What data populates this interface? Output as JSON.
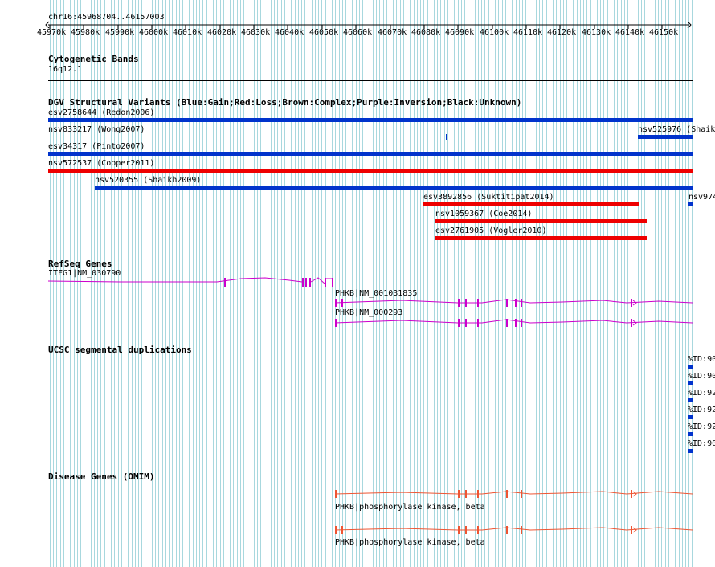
{
  "colors": {
    "grid": "#a8d8de",
    "gain": "#0033cc",
    "loss": "#ee0000",
    "gene": "#cc00cc",
    "omim": "#ee5533",
    "dup": "#0033cc"
  },
  "ruler": {
    "location": "chr16:45968704..46157003",
    "ticks": [
      "45970k",
      "45980k",
      "45990k",
      "46000k",
      "46010k",
      "46020k",
      "46030k",
      "46040k",
      "46050k",
      "46060k",
      "46070k",
      "46080k",
      "46090k",
      "46100k",
      "46110k",
      "46120k",
      "46130k",
      "46140k",
      "46150k"
    ]
  },
  "cytoband": {
    "title": "Cytogenetic Bands",
    "band": "16q12.1"
  },
  "dgv": {
    "title": "DGV Structural Variants (Blue:Gain;Red:Loss;Brown:Complex;Purple:Inversion;Black:Unknown)",
    "variants": [
      {
        "label": "esv2758644 (Redon2006)",
        "type": "gain"
      },
      {
        "label": "nsv833217 (Wong2007)",
        "type": "gain"
      },
      {
        "label": "nsv525976 (Shaik",
        "type": "gain"
      },
      {
        "label": "esv34317 (Pinto2007)",
        "type": "gain"
      },
      {
        "label": "nsv572537 (Cooper2011)",
        "type": "loss"
      },
      {
        "label": "nsv520355 (Shaikh2009)",
        "type": "gain"
      },
      {
        "label": "esv3892856 (Suktitipat2014)",
        "type": "loss"
      },
      {
        "label": "nsv974",
        "type": "gain"
      },
      {
        "label": "nsv1059367 (Coe2014)",
        "type": "loss"
      },
      {
        "label": "esv2761905 (Vogler2010)",
        "type": "loss"
      }
    ]
  },
  "refseq": {
    "title": "RefSeq Genes",
    "genes": [
      {
        "label": "ITFG1|NM_030790"
      },
      {
        "label": "PHKB|NM_001031835"
      },
      {
        "label": "PHKB|NM_000293"
      }
    ]
  },
  "segdups": {
    "title": "UCSC segmental duplications",
    "labels": [
      "%ID:90",
      "%ID:90",
      "%ID:92",
      "%ID:92",
      "%ID:92",
      "%ID:90"
    ]
  },
  "omim": {
    "title": "Disease Genes (OMIM)",
    "genes": [
      {
        "label": "PHKB|phosphorylase kinase, beta"
      },
      {
        "label": "PHKB|phosphorylase kinase, beta"
      }
    ]
  }
}
